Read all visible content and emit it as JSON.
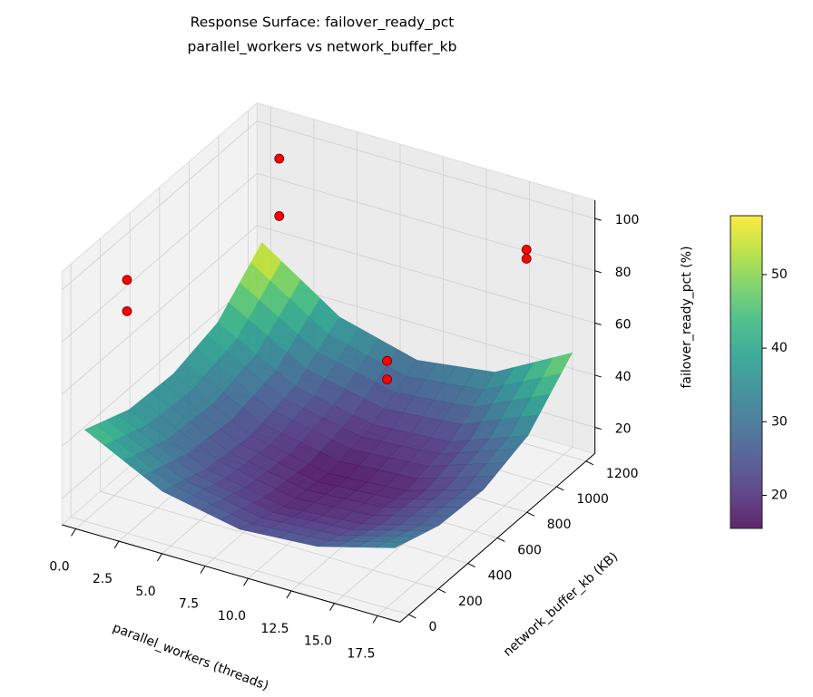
{
  "chart_data": {
    "type": "surface3d",
    "title": "Response Surface: failover_ready_pct",
    "subtitle": "parallel_workers vs network_buffer_kb",
    "xlabel": "parallel_workers (threads)",
    "ylabel": "network_buffer_kb (KB)",
    "zlabel": "failover_ready_pct (%)",
    "xlim": [
      -0.8,
      18.8
    ],
    "ylim": [
      -60,
      1260
    ],
    "zlim": [
      10,
      107
    ],
    "xticks": [
      {
        "value": 0,
        "label": "0.0"
      },
      2.5,
      {
        "value": 5,
        "label": "5.0"
      },
      7.5,
      {
        "value": 10,
        "label": "10.0"
      },
      12.5,
      {
        "value": 15,
        "label": "15.0"
      },
      17.5
    ],
    "yticks": [
      0,
      200,
      400,
      600,
      800,
      1000,
      1200
    ],
    "zticks": [
      20,
      40,
      60,
      80,
      100
    ],
    "surface": {
      "colormap": "viridis",
      "clim": [
        15.5,
        58
      ],
      "x": [
        0,
        4.5,
        9,
        13.5,
        18
      ],
      "y": [
        0,
        300,
        600,
        900,
        1200
      ],
      "z": [
        [
          45,
          30,
          24,
          26,
          34
        ],
        [
          38,
          24,
          18,
          20,
          28
        ],
        [
          37,
          22,
          16,
          18,
          27
        ],
        [
          42,
          26,
          20,
          22,
          33
        ],
        [
          58,
          38,
          30,
          34,
          50
        ]
      ]
    },
    "colorbar_ticks": [
      20,
      30,
      40,
      50
    ],
    "scatter": {
      "color": "#ff0000",
      "x": [
        1,
        1,
        1,
        1,
        16.2,
        16.2,
        12.4,
        12.4
      ],
      "y": [
        1200,
        1200,
        170,
        170,
        1100,
        1100,
        600,
        600
      ],
      "z": [
        92,
        70,
        96,
        84,
        91,
        87.5,
        65.6,
        58.5
      ]
    }
  }
}
